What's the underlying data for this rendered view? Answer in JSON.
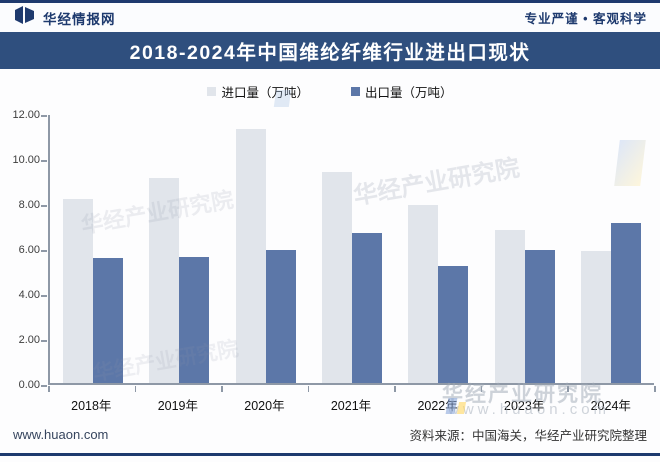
{
  "header": {
    "brand": "华经情报网",
    "slogan": "专业严谨 • 客观科学"
  },
  "title": "2018-2024年中国维纶纤维行业进出口现状",
  "legend": {
    "items": [
      {
        "label": "进口量（万吨）"
      },
      {
        "label": "出口量（万吨）"
      }
    ]
  },
  "chart_data": {
    "type": "bar",
    "title": "2018-2024年中国维纶纤维行业进出口现状",
    "categories": [
      "2018年",
      "2019年",
      "2020年",
      "2021年",
      "2022年",
      "2023年",
      "2024年"
    ],
    "series": [
      {
        "name": "进口量（万吨）",
        "color": "#E1E5EB",
        "values": [
          8.2,
          9.1,
          11.3,
          9.4,
          7.9,
          6.8,
          5.85
        ]
      },
      {
        "name": "出口量（万吨）",
        "color": "#5C77A8",
        "values": [
          5.55,
          5.6,
          5.9,
          6.65,
          5.2,
          5.9,
          7.1
        ]
      }
    ],
    "xlabel": "",
    "ylabel": "",
    "ylim": [
      0,
      12
    ],
    "ytick_step": 2,
    "ytick_labels": [
      "12.00",
      "10.00",
      "8.00",
      "6.00",
      "4.00",
      "2.00",
      "0.00"
    ],
    "grid": false,
    "legend_position": "top"
  },
  "watermark": {
    "text": "华经产业研究院",
    "url": "www.huaon.com"
  },
  "footer": {
    "url": "www.huaon.com",
    "source": "资料来源：中国海关，华经产业研究院整理"
  },
  "colors": {
    "accent_navy": "#1E3A6E",
    "title_bar": "#2F4F7E",
    "import_bar": "#E1E5EB",
    "export_bar": "#5C77A8"
  }
}
